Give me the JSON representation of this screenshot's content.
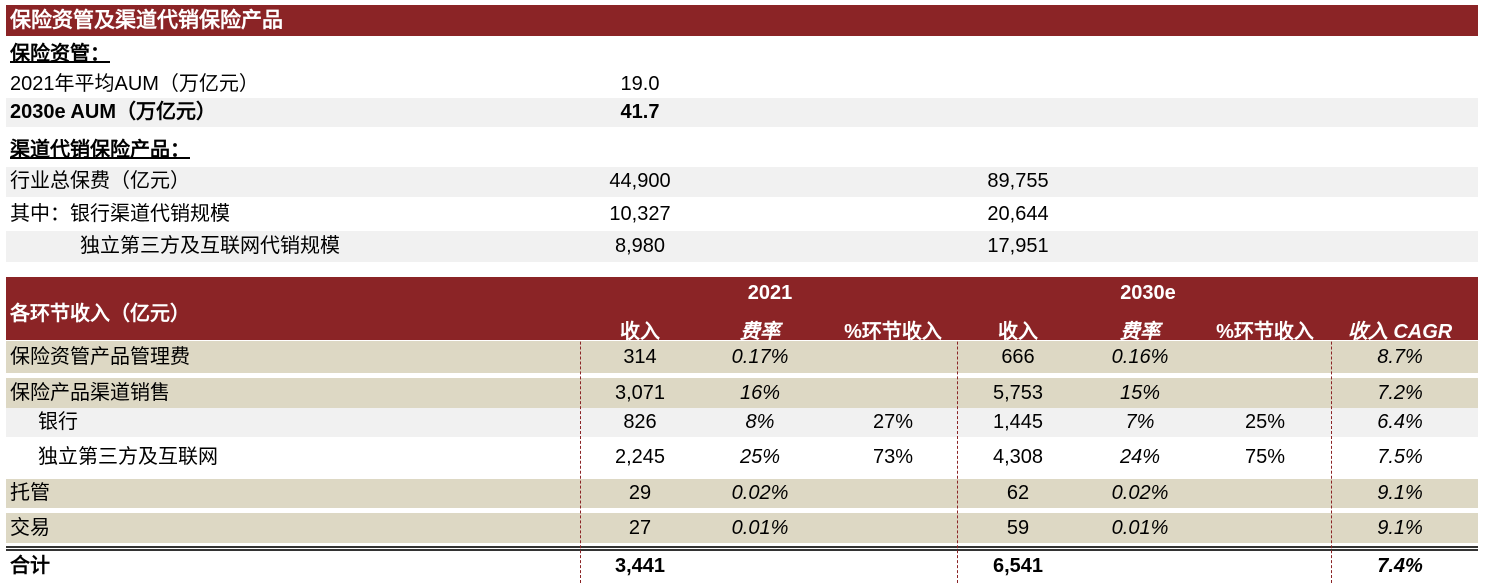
{
  "title": "保险资管及渠道代销保险产品",
  "am_section": {
    "heading": "保险资管：",
    "rows": [
      {
        "label": "2021年平均AUM（万亿元）",
        "value": "19.0"
      },
      {
        "label": "2030e AUM（万亿元）",
        "value": "41.7"
      }
    ]
  },
  "dist_section": {
    "heading": "渠道代销保险产品：",
    "rows": [
      {
        "label": "行业总保费（亿元）",
        "v2021": "44,900",
        "v2030": "89,755"
      },
      {
        "label": "其中：银行渠道代销规模",
        "v2021": "10,327",
        "v2030": "20,644"
      },
      {
        "label": "独立第三方及互联网代销规模",
        "v2021": "8,980",
        "v2030": "17,951"
      }
    ]
  },
  "revenue_table": {
    "title": "各环节收入（亿元）",
    "year1": "2021",
    "year2": "2030e",
    "cols": [
      "收入",
      "费率",
      "%环节收入",
      "收入",
      "费率",
      "%环节收入",
      "收入 CAGR"
    ],
    "rows": [
      {
        "label": "保险资管产品管理费",
        "c": [
          "314",
          "0.17%",
          "",
          "666",
          "0.16%",
          "",
          "8.7%"
        ]
      },
      {
        "label": "保险产品渠道销售",
        "c": [
          "3,071",
          "16%",
          "",
          "5,753",
          "15%",
          "",
          "7.2%"
        ]
      },
      {
        "label": "银行",
        "c": [
          "826",
          "8%",
          "27%",
          "1,445",
          "7%",
          "25%",
          "6.4%"
        ]
      },
      {
        "label": "独立第三方及互联网",
        "c": [
          "2,245",
          "25%",
          "73%",
          "4,308",
          "24%",
          "75%",
          "7.5%"
        ]
      },
      {
        "label": "托管",
        "c": [
          "29",
          "0.02%",
          "",
          "62",
          "0.02%",
          "",
          "9.1%"
        ]
      },
      {
        "label": "交易",
        "c": [
          "27",
          "0.01%",
          "",
          "59",
          "0.01%",
          "",
          "9.1%"
        ]
      }
    ],
    "total": {
      "label": "合计",
      "c": [
        "3,441",
        "",
        "",
        "6,541",
        "",
        "",
        "7.4%"
      ]
    }
  },
  "colors": {
    "header": "#8b2426",
    "beige": "#ddd8c4",
    "gray": "#f1f1f1"
  }
}
